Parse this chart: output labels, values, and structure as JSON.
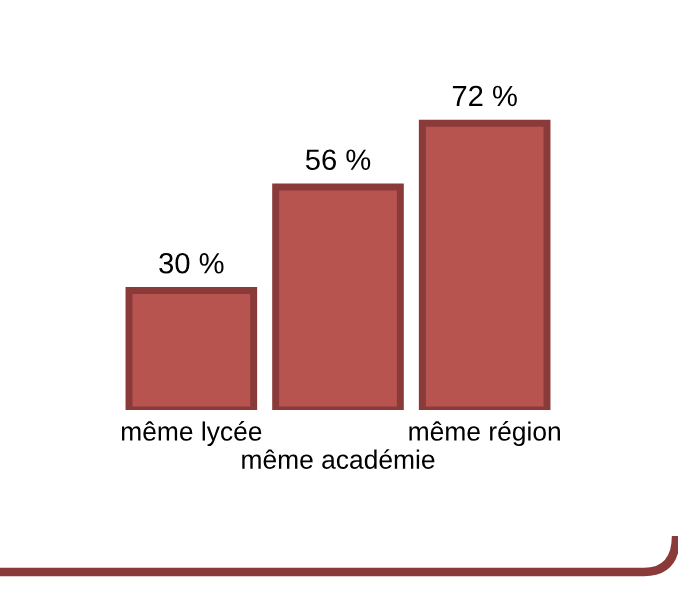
{
  "chart_data": {
    "type": "bar",
    "categories": [
      "même lycée",
      "même académie",
      "même région"
    ],
    "values": [
      30,
      56,
      72
    ],
    "value_labels": [
      "30 %",
      "56 %",
      "72 %"
    ],
    "color": "#b85450",
    "grid": false,
    "legend": false
  }
}
